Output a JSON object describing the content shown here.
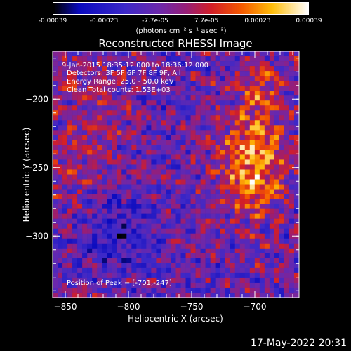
{
  "colorbar": {
    "ticks": [
      "-0.00039",
      "-0.00023",
      "-7.7e-05",
      "7.7e-05",
      "0.00023",
      "0.00039"
    ],
    "units": "(photons cm⁻² s⁻¹ asec⁻²)"
  },
  "chart_data": {
    "type": "heatmap",
    "title": "Reconstructed RHESSI Image",
    "xlabel": "Heliocentric X (arcsec)",
    "ylabel": "Heliocentric Y (arcsec)",
    "xlim": [
      -860,
      -665
    ],
    "ylim": [
      -345,
      -165
    ],
    "x_ticks": [
      "-850",
      "-800",
      "-750",
      "-700"
    ],
    "y_ticks": [
      "-200",
      "-250",
      "-300"
    ],
    "colormap": "black-blue-purple-red-yellow-white",
    "value_range": [
      -0.00039,
      0.00039
    ],
    "annotations": [
      "9-Jan-2015 18:35:12.000 to 18:36:12.000",
      "Detectors: 3F 5F 6F 7F 8F 9F, All",
      "Energy Range: 25.0 - 50.0 keV",
      "Clean     Total counts: 1.53E+03"
    ],
    "peak_label": "Position of Peak = [-701,-247]",
    "peak": [
      -701,
      -247
    ]
  },
  "footer": "17-May-2022 20:31"
}
